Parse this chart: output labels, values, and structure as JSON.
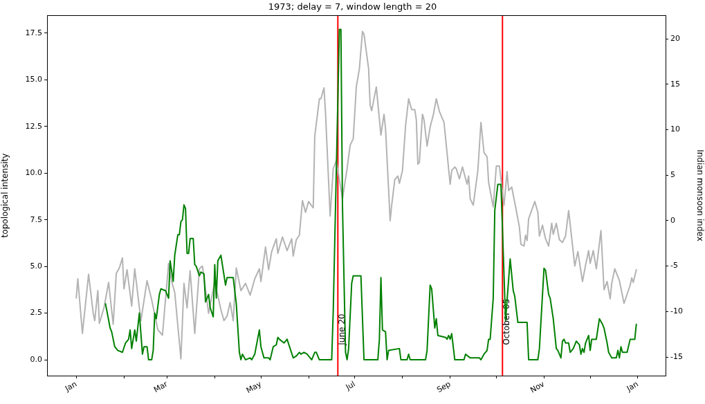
{
  "chart_data": {
    "type": "line",
    "title": "1973; delay = 7, window length = 20",
    "ylabel": "topological intensity",
    "y2label": "Indian monsoon index",
    "xlim": [
      "1972-12-13",
      "1974-01-19"
    ],
    "xticks": [
      {
        "value": "1973-01-01",
        "label": "Jan"
      },
      {
        "value": "1973-02-01",
        "label": null
      },
      {
        "value": "1973-03-01",
        "label": "Mar"
      },
      {
        "value": "1973-04-01",
        "label": null
      },
      {
        "value": "1973-05-01",
        "label": "May"
      },
      {
        "value": "1973-06-01",
        "label": null
      },
      {
        "value": "1973-07-01",
        "label": "Jul"
      },
      {
        "value": "1973-08-01",
        "label": null
      },
      {
        "value": "1973-09-01",
        "label": "Sep"
      },
      {
        "value": "1973-10-01",
        "label": null
      },
      {
        "value": "1973-11-01",
        "label": "Nov"
      },
      {
        "value": "1973-12-01",
        "label": null
      },
      {
        "value": "1974-01-01",
        "label": "Jan"
      }
    ],
    "ylim": [
      -0.85,
      18.46
    ],
    "yticks": [
      {
        "value": 0,
        "label": "0.0"
      },
      {
        "value": 2.5,
        "label": "2.5"
      },
      {
        "value": 5,
        "label": "5.0"
      },
      {
        "value": 7.5,
        "label": "7.5"
      },
      {
        "value": 10,
        "label": "10.0"
      },
      {
        "value": 12.5,
        "label": "12.5"
      },
      {
        "value": 15,
        "label": "15.0"
      },
      {
        "value": 17.5,
        "label": "17.5"
      }
    ],
    "y2lim": [
      -17.05,
      22.59
    ],
    "y2ticks": [
      -15,
      -10,
      -5,
      0,
      5,
      10,
      15,
      20
    ],
    "legend": false,
    "ref_lines": [
      {
        "axis": "x",
        "value": "1973-06-20",
        "label": "June 20",
        "color": "#ff0000"
      },
      {
        "axis": "x",
        "value": "1973-10-05",
        "label": "October 05",
        "color": "#ff0000"
      }
    ],
    "series": [
      {
        "color": "#008000",
        "x": [
          "1973-01-20",
          "1973-01-23",
          "1973-01-24",
          "1973-01-26",
          "1973-01-28",
          "1973-01-31",
          "1973-02-02",
          "1973-02-04",
          "1973-02-05",
          "1973-02-06",
          "1973-02-08",
          "1973-02-09",
          "1973-02-11",
          "1973-02-13",
          "1973-02-14",
          "1973-02-16",
          "1973-02-17",
          "1973-02-19",
          "1973-02-20",
          "1973-02-21",
          "1973-02-22",
          "1973-02-24",
          "1973-02-25",
          "1973-02-28",
          "1973-03-02",
          "1973-03-03",
          "1973-03-05",
          "1973-03-06",
          "1973-03-08",
          "1973-03-09",
          "1973-03-10",
          "1973-03-11",
          "1973-03-12",
          "1973-03-13",
          "1973-03-14",
          "1973-03-15",
          "1973-03-16",
          "1973-03-18",
          "1973-03-19",
          "1973-03-20",
          "1973-03-22",
          "1973-03-23",
          "1973-03-25",
          "1973-03-26",
          "1973-03-28",
          "1973-03-29",
          "1973-03-31",
          "1973-04-01",
          "1973-04-02",
          "1973-04-03",
          "1973-04-05",
          "1973-04-08",
          "1973-04-09",
          "1973-04-13",
          "1973-04-15",
          "1973-04-17",
          "1973-04-18",
          "1973-04-19",
          "1973-04-21",
          "1973-04-24",
          "1973-04-25",
          "1973-04-27",
          "1973-04-30",
          "1973-05-01",
          "1973-05-03",
          "1973-05-06",
          "1973-05-07",
          "1973-05-09",
          "1973-05-11",
          "1973-05-12",
          "1973-05-13",
          "1973-05-16",
          "1973-05-18",
          "1973-05-20",
          "1973-05-22",
          "1973-05-24",
          "1973-05-26",
          "1973-05-27",
          "1973-05-29",
          "1973-05-31",
          "1973-06-03",
          "1973-06-05",
          "1973-06-06",
          "1973-06-08",
          "1973-06-16",
          "1973-06-17",
          "1973-06-21",
          "1973-06-22",
          "1973-06-23",
          "1973-06-25",
          "1973-06-26",
          "1973-06-27",
          "1973-06-29",
          "1973-06-30",
          "1973-07-05",
          "1973-07-07",
          "1973-07-16",
          "1973-07-17",
          "1973-07-18",
          "1973-07-19",
          "1973-07-21",
          "1973-07-22",
          "1973-07-23",
          "1973-07-30",
          "1973-07-31",
          "1973-08-04",
          "1973-08-05",
          "1973-08-06",
          "1973-08-16",
          "1973-08-17",
          "1973-08-19",
          "1973-08-20",
          "1973-08-22",
          "1973-08-23",
          "1973-08-24",
          "1973-08-29",
          "1973-08-30",
          "1973-08-31",
          "1973-09-01",
          "1973-09-02",
          "1973-09-04",
          "1973-09-10",
          "1973-09-11",
          "1973-09-14",
          "1973-09-20",
          "1973-09-21",
          "1973-09-23",
          "1973-09-25",
          "1973-09-26",
          "1973-09-27",
          "1973-09-29",
          "1973-09-30",
          "1973-10-02",
          "1973-10-04",
          "1973-10-05",
          "1973-10-07",
          "1973-10-10",
          "1973-10-12",
          "1973-10-13",
          "1973-10-15",
          "1973-10-21",
          "1973-10-22",
          "1973-10-28",
          "1973-10-29",
          "1973-11-01",
          "1973-11-02",
          "1973-11-04",
          "1973-11-05",
          "1973-11-07",
          "1973-11-09",
          "1973-11-10",
          "1973-11-12",
          "1973-11-13",
          "1973-11-14",
          "1973-11-15",
          "1973-11-17",
          "1973-11-18",
          "1973-11-20",
          "1973-11-22",
          "1973-11-24",
          "1973-11-25",
          "1973-11-26",
          "1973-11-27",
          "1973-11-28",
          "1973-11-30",
          "1973-12-01",
          "1973-12-02",
          "1973-12-05",
          "1973-12-07",
          "1973-12-09",
          "1973-12-10",
          "1973-12-12",
          "1973-12-13",
          "1973-12-15",
          "1973-12-18",
          "1973-12-19",
          "1973-12-20",
          "1973-12-21",
          "1973-12-22",
          "1973-12-25",
          "1973-12-27",
          "1973-12-28",
          "1973-12-30",
          "1973-12-31"
        ],
        "values": [
          3.0,
          1.7,
          1.5,
          0.7,
          0.5,
          0.4,
          0.9,
          1.1,
          1.6,
          0.6,
          1.6,
          1.0,
          2.5,
          0.3,
          0.7,
          0.7,
          0,
          0,
          0.5,
          2.5,
          2.2,
          3.5,
          3.8,
          3.7,
          3.3,
          5.3,
          4.2,
          5.6,
          6.7,
          6.7,
          7.4,
          7.5,
          8.3,
          8.1,
          5.7,
          5.7,
          6.5,
          6.5,
          5.1,
          5.0,
          4.5,
          4.7,
          4.6,
          3.1,
          3.5,
          2.8,
          2.3,
          5.1,
          3.3,
          5.3,
          5.6,
          4.0,
          4.4,
          4.4,
          3.0,
          0.4,
          0,
          0.3,
          0,
          0.1,
          0,
          0.3,
          1.6,
          0.7,
          0.1,
          0.1,
          0,
          0.7,
          0.8,
          1.2,
          1.1,
          0.9,
          1.1,
          0.6,
          0.1,
          0.2,
          0.4,
          0.3,
          0.4,
          0.3,
          0,
          0.4,
          0.4,
          0,
          0,
          2.6,
          17.7,
          17.7,
          8.3,
          0.4,
          0,
          0.6,
          4.1,
          4.5,
          4.5,
          0,
          0,
          1.1,
          4.4,
          1.6,
          1.5,
          0,
          0.5,
          0.6,
          0,
          0,
          0.3,
          0,
          0,
          0.5,
          4.0,
          3.8,
          1.7,
          2.2,
          1.3,
          1.2,
          1.1,
          1.3,
          1.1,
          1.4,
          0,
          0,
          0.3,
          0.1,
          0.1,
          0,
          0.3,
          0.5,
          1.1,
          1.1,
          3.3,
          8.0,
          9.4,
          9.4,
          7.0,
          2.1,
          5.4,
          3.7,
          3.4,
          2.0,
          2.0,
          0,
          0,
          0.6,
          4.9,
          4.8,
          3.5,
          3.3,
          2.2,
          0.6,
          0.5,
          0.1,
          1.0,
          1.1,
          0.9,
          0.9,
          0.4,
          0.6,
          1.0,
          0.8,
          0.3,
          0.6,
          0.4,
          0.9,
          1.3,
          0.5,
          1.1,
          1.1,
          2.2,
          1.9,
          1.7,
          0.9,
          0.4,
          0.1,
          0.1,
          0.5,
          0.1,
          0.7,
          0.4,
          0.4,
          1.1,
          1.1,
          1.1,
          1.9
        ]
      },
      {
        "color": "#b3b3b3",
        "axis": "y2",
        "x": [
          "1973-01-01",
          "1973-01-02",
          "1973-01-05",
          "1973-01-09",
          "1973-01-12",
          "1973-01-13",
          "1973-01-15",
          "1973-01-16",
          "1973-01-19",
          "1973-01-22",
          "1973-01-25",
          "1973-01-27",
          "1973-01-29",
          "1973-01-31",
          "1973-02-01",
          "1973-02-03",
          "1973-02-06",
          "1973-02-08",
          "1973-02-12",
          "1973-02-16",
          "1973-02-19",
          "1973-02-23",
          "1973-02-26",
          "1973-03-02",
          "1973-03-04",
          "1973-03-06",
          "1973-03-10",
          "1973-03-12",
          "1973-03-14",
          "1973-03-16",
          "1973-03-19",
          "1973-03-22",
          "1973-03-24",
          "1973-03-28",
          "1973-04-01",
          "1973-04-05",
          "1973-04-07",
          "1973-04-09",
          "1973-04-11",
          "1973-04-13",
          "1973-04-15",
          "1973-04-18",
          "1973-04-21",
          "1973-04-24",
          "1973-04-27",
          "1973-04-30",
          "1973-05-01",
          "1973-05-04",
          "1973-05-06",
          "1973-05-08",
          "1973-05-11",
          "1973-05-12",
          "1973-05-15",
          "1973-05-18",
          "1973-05-21",
          "1973-05-22",
          "1973-05-24",
          "1973-05-26",
          "1973-05-28",
          "1973-05-30",
          "1973-06-01",
          "1973-06-04",
          "1973-06-05",
          "1973-06-08",
          "1973-06-09",
          "1973-06-11",
          "1973-06-12",
          "1973-06-15",
          "1973-06-17",
          "1973-06-19",
          "1973-06-23",
          "1973-06-26",
          "1973-06-28",
          "1973-06-30",
          "1973-07-02",
          "1973-07-04",
          "1973-07-06",
          "1973-07-07",
          "1973-07-10",
          "1973-07-11",
          "1973-07-12",
          "1973-07-15",
          "1973-07-18",
          "1973-07-20",
          "1973-07-21",
          "1973-07-24",
          "1973-07-25",
          "1973-07-27",
          "1973-07-29",
          "1973-07-30",
          "1973-08-01",
          "1973-08-03",
          "1973-08-05",
          "1973-08-07",
          "1973-08-09",
          "1973-08-10",
          "1973-08-11",
          "1973-08-12",
          "1973-08-14",
          "1973-08-15",
          "1973-08-17",
          "1973-08-19",
          "1973-08-21",
          "1973-08-23",
          "1973-08-25",
          "1973-08-28",
          "1973-09-01",
          "1973-09-02",
          "1973-09-04",
          "1973-09-05",
          "1973-09-07",
          "1973-09-09",
          "1973-09-12",
          "1973-09-13",
          "1973-09-14",
          "1973-09-16",
          "1973-09-19",
          "1973-09-21",
          "1973-09-23",
          "1973-09-25",
          "1973-09-26",
          "1973-09-29",
          "1973-10-01",
          "1973-10-03",
          "1973-10-06",
          "1973-10-08",
          "1973-10-09",
          "1973-10-11",
          "1973-10-14",
          "1973-10-16",
          "1973-10-17",
          "1973-10-19",
          "1973-10-20",
          "1973-10-21",
          "1973-10-22",
          "1973-10-26",
          "1973-10-28",
          "1973-10-29",
          "1973-10-31",
          "1973-11-02",
          "1973-11-04",
          "1973-11-06",
          "1973-11-07",
          "1973-11-09",
          "1973-11-11",
          "1973-11-13",
          "1973-11-15",
          "1973-11-17",
          "1973-11-21",
          "1973-11-23",
          "1973-11-26",
          "1973-11-28",
          "1973-11-30",
          "1973-12-01",
          "1973-12-03",
          "1973-12-05",
          "1973-12-08",
          "1973-12-10",
          "1973-12-12",
          "1973-12-14",
          "1973-12-15",
          "1973-12-17",
          "1973-12-20",
          "1973-12-23",
          "1973-12-27",
          "1973-12-28",
          "1973-12-29",
          "1973-12-31"
        ],
        "values": [
          -8.5,
          -6.4,
          -12.4,
          -5.9,
          -10.2,
          -11,
          -7.7,
          -11.3,
          -9.6,
          -6.8,
          -11.4,
          -5.8,
          -5.2,
          -4.1,
          -7.5,
          -5.4,
          -9.4,
          -5.3,
          -11,
          -6.6,
          -8.7,
          -12,
          -12.6,
          -4.7,
          -6.7,
          -7.9,
          -15.2,
          -6.9,
          -9.6,
          -5.5,
          -12.4,
          -5.3,
          -5,
          -10.2,
          -6.7,
          -9.8,
          -11,
          -10.5,
          -9,
          -11,
          -5.2,
          -7.7,
          -6.9,
          -8.2,
          -6.4,
          -5.3,
          -6.7,
          -2.9,
          -5.4,
          -3.4,
          -2,
          -3.6,
          -1.8,
          -3.3,
          -2,
          -3.9,
          -2.1,
          -1.6,
          2.2,
          0.9,
          2.1,
          1.4,
          9.3,
          13.4,
          13.4,
          14.6,
          11.8,
          0.5,
          5.7,
          6.6,
          2.4,
          5.7,
          8.3,
          9.0,
          14.7,
          16.7,
          20.8,
          20.5,
          16.7,
          12.7,
          12.1,
          14.7,
          9.4,
          11.7,
          10.1,
          0.0,
          1.7,
          4.5,
          4.9,
          4.1,
          5.5,
          10.4,
          13.4,
          12.2,
          12.2,
          11.1,
          6.2,
          6.4,
          11.7,
          11.1,
          8.2,
          10.3,
          11.6,
          13.4,
          12,
          10.8,
          4,
          5.5,
          5.9,
          5.7,
          4.6,
          5.9,
          4,
          4.9,
          2.4,
          1.7,
          5.5,
          10.8,
          7.5,
          7,
          4.2,
          1.5,
          6.0,
          6.0,
          1.7,
          5.4,
          3.3,
          3.7,
          1.1,
          -0.7,
          -2.6,
          -2.8,
          -1.6,
          -2.2,
          0.2,
          2.1,
          0.9,
          -1.7,
          -0.5,
          -2,
          -2.8,
          -0.3,
          -1.5,
          -0.3,
          -2.1,
          -2.4,
          -1.7,
          1.1,
          -5,
          -3.4,
          -6.7,
          -4.9,
          -3.3,
          -4.7,
          -3.3,
          -5.3,
          -1.1,
          -7.6,
          -6.7,
          -8.6,
          -6.9,
          -5.3,
          -6.6,
          -9.1,
          -7.1,
          -6.3,
          -6.8,
          -5.4
        ]
      }
    ]
  }
}
